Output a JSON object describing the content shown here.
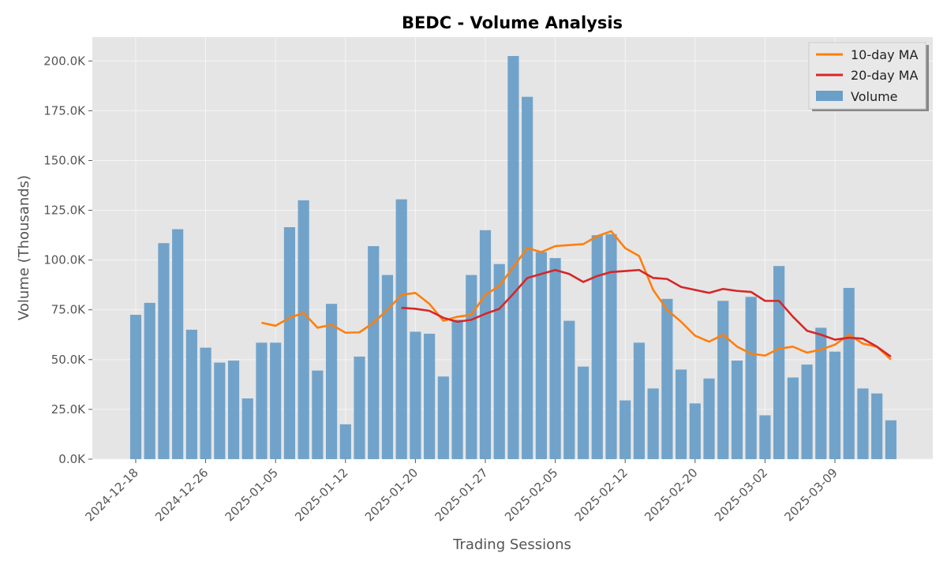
{
  "chart_data": {
    "type": "bar",
    "title": "BEDC - Volume Analysis",
    "xlabel": "Trading Sessions",
    "ylabel": "Volume (Thousands)",
    "ylim": [
      0,
      212000
    ],
    "grid": true,
    "legend_position": "top-right",
    "y_ticks": [
      0,
      25000,
      50000,
      75000,
      100000,
      125000,
      150000,
      175000,
      200000
    ],
    "y_tick_labels": [
      "0.0K",
      "25.0K",
      "50.0K",
      "75.0K",
      "100.0K",
      "125.0K",
      "150.0K",
      "175.0K",
      "200.0K"
    ],
    "x_tick_labels": [
      "2024-12-18",
      "2024-12-26",
      "2025-01-05",
      "2025-01-12",
      "2025-01-20",
      "2025-01-27",
      "2025-02-05",
      "2025-02-12",
      "2025-02-20",
      "2025-03-02",
      "2025-03-09"
    ],
    "x_tick_positions": [
      0,
      5,
      10,
      15,
      20,
      25,
      30,
      35,
      40,
      45,
      50
    ],
    "series": [
      {
        "name": "Volume",
        "kind": "bar",
        "color": "#6a9fc8",
        "values": [
          72500,
          78500,
          108500,
          115500,
          65000,
          56000,
          48500,
          49500,
          30500,
          58500,
          58500,
          116500,
          130000,
          44500,
          78000,
          17500,
          51500,
          107000,
          92500,
          130500,
          64000,
          63000,
          41500,
          70000,
          92500,
          115000,
          98000,
          202500,
          182000,
          104000,
          101000,
          69500,
          46500,
          112500,
          113000,
          29500,
          58500,
          35500,
          80500,
          45000,
          28000,
          40500,
          79500,
          49500,
          81500,
          22000,
          97000,
          41000,
          47500,
          66000,
          54000,
          86000,
          35500,
          33000,
          19500
        ]
      },
      {
        "name": "10-day MA",
        "kind": "line",
        "color": "#ff7f0e",
        "start_index": 9,
        "values": [
          68500,
          67000,
          71000,
          73500,
          66000,
          67500,
          63500,
          63700,
          68500,
          75000,
          82500,
          83500,
          78000,
          69500,
          71500,
          72500,
          82500,
          87000,
          96500,
          106000,
          104000,
          107000,
          107500,
          108000,
          112000,
          114500,
          106000,
          102000,
          85000,
          75000,
          69000,
          62000,
          59000,
          62500,
          56500,
          53000,
          52000,
          55500,
          56500,
          53500,
          55000,
          57500,
          62500,
          58000,
          56500,
          50000
        ]
      },
      {
        "name": "20-day MA",
        "kind": "line",
        "color": "#d62728",
        "start_index": 19,
        "values": [
          76000,
          75500,
          74500,
          71000,
          69000,
          70000,
          73000,
          75500,
          83000,
          91000,
          93000,
          95000,
          93000,
          89000,
          92000,
          94000,
          94500,
          95000,
          91000,
          90500,
          86500,
          85000,
          83500,
          85500,
          84500,
          84000,
          79500,
          79500,
          71500,
          64500,
          62500,
          60000,
          61000,
          60500,
          56500,
          51500
        ]
      }
    ]
  }
}
